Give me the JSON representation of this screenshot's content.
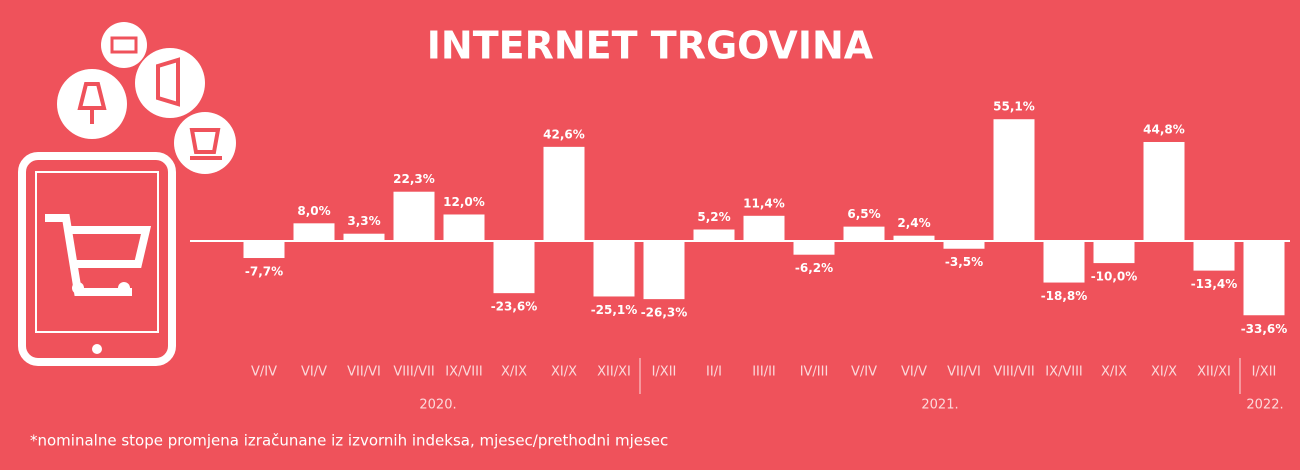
{
  "chart_data": {
    "type": "bar",
    "title": "INTERNET  TRGOVINA",
    "categories": [
      "V/IV",
      "VI/V",
      "VII/VI",
      "VIII/VII",
      "IX/VIII",
      "X/IX",
      "XI/X",
      "XII/XI",
      "I/XII",
      "II/I",
      "III/II",
      "IV/III",
      "V/IV",
      "VI/V",
      "VII/VI",
      "VIII/VII",
      "IX/VIII",
      "X/IX",
      "XI/X",
      "XII/XI",
      "I/XII"
    ],
    "values": [
      -7.7,
      8.0,
      3.3,
      22.3,
      12.0,
      -23.6,
      42.6,
      -25.1,
      -26.3,
      5.2,
      11.4,
      -6.2,
      6.5,
      2.4,
      -3.5,
      55.1,
      -18.8,
      -10.0,
      44.8,
      -13.4,
      -33.6
    ],
    "value_labels": [
      "-7,7%",
      "8,0%",
      "3,3%",
      "22,3%",
      "12,0%",
      "-23,6%",
      "42,6%",
      "-25,1%",
      "-26,3%",
      "5,2%",
      "11,4%",
      "-6,2%",
      "6,5%",
      "2,4%",
      "-3,5%",
      "55,1%",
      "-18,8%",
      "-10,0%",
      "44,8%",
      "-13,4%",
      "-33,6%"
    ],
    "color": "#ffffff",
    "groups": [
      "2020.",
      "2021.",
      "2022."
    ],
    "footnote": "*nominalne stope promjena izračunane iz izvornih indeksa, mjesec/prethodni mjesec"
  }
}
